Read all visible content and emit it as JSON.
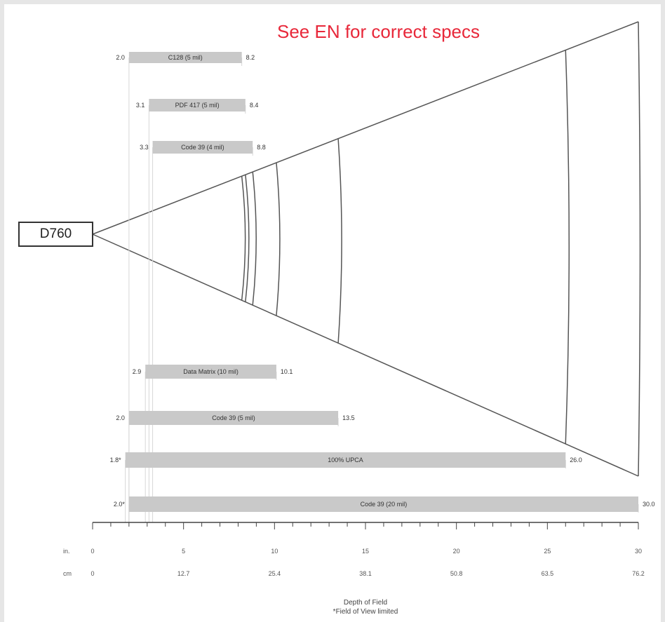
{
  "banner": "See EN for correct specs",
  "device": "D760",
  "colors": {
    "bar": "#c9c9c9",
    "line": "#555555",
    "banner": "#e8283a",
    "background": "#ffffff"
  },
  "chart_data": {
    "type": "bar",
    "orientation": "horizontal",
    "xlim": [
      0,
      30
    ],
    "bars": [
      {
        "name": "C128 (5 mil)",
        "min": 2.0,
        "max": 8.2,
        "min_label": "2.0",
        "max_label": "8.2"
      },
      {
        "name": "PDF 417 (5 mil)",
        "min": 3.1,
        "max": 8.4,
        "min_label": "3.1",
        "max_label": "8.4"
      },
      {
        "name": "Code 39 (4 mil)",
        "min": 3.3,
        "max": 8.8,
        "min_label": "3.3",
        "max_label": "8.8"
      },
      {
        "name": "Data Matrix (10 mil)",
        "min": 2.9,
        "max": 10.1,
        "min_label": "2.9",
        "max_label": "10.1"
      },
      {
        "name": "Code 39 (5 mil)",
        "min": 2.0,
        "max": 13.5,
        "min_label": "2.0",
        "max_label": "13.5"
      },
      {
        "name": "100% UPCA",
        "min": 1.8,
        "max": 26.0,
        "min_label": "1.8*",
        "max_label": "26.0"
      },
      {
        "name": "Code 39 (20 mil)",
        "min": 2.0,
        "max": 30.0,
        "min_label": "2.0*",
        "max_label": "30.0"
      }
    ],
    "axis_in": {
      "label": "in.",
      "ticks": [
        "0",
        "5",
        "10",
        "15",
        "20",
        "25",
        "30"
      ]
    },
    "axis_cm": {
      "label": "cm",
      "ticks": [
        "0",
        "12.7",
        "25.4",
        "38.1",
        "50.8",
        "63.5",
        "76.2"
      ]
    },
    "xlabel": "Depth of Field",
    "note": "*Field of View limited"
  }
}
